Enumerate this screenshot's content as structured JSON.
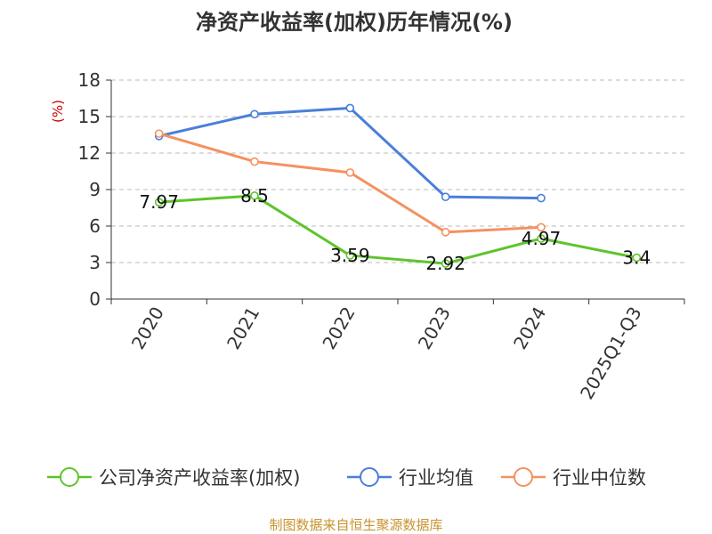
{
  "chart_data": {
    "type": "line",
    "title": "净资产收益率(加权)历年情况(%)",
    "ylabel": "(%)",
    "xlabel": "",
    "categories": [
      "2020",
      "2021",
      "2022",
      "2023",
      "2024",
      "2025Q1-Q3"
    ],
    "ylim": [
      0,
      18
    ],
    "yticks": [
      0,
      3,
      6,
      9,
      12,
      15,
      18
    ],
    "grid": true,
    "legend_position": "bottom",
    "series": [
      {
        "name": "公司净资产收益率(加权)",
        "color": "#5ec42b",
        "values": [
          7.97,
          8.5,
          3.59,
          2.92,
          4.97,
          3.4
        ],
        "labels": [
          "7.97",
          "8.5",
          "3.59",
          "2.92",
          "4.97",
          "3.4"
        ]
      },
      {
        "name": "行业均值",
        "color": "#4a7fd9",
        "values": [
          13.4,
          15.2,
          15.7,
          8.4,
          8.3,
          null
        ]
      },
      {
        "name": "行业中位数",
        "color": "#f59160",
        "values": [
          13.6,
          11.3,
          10.4,
          5.5,
          5.9,
          null
        ]
      }
    ]
  },
  "source_text": "制图数据来自恒生聚源数据库",
  "colors": {
    "axis": "#333333",
    "grid": "#bbbbbb",
    "ylabel": "#cc0000",
    "source": "#c8932f"
  }
}
